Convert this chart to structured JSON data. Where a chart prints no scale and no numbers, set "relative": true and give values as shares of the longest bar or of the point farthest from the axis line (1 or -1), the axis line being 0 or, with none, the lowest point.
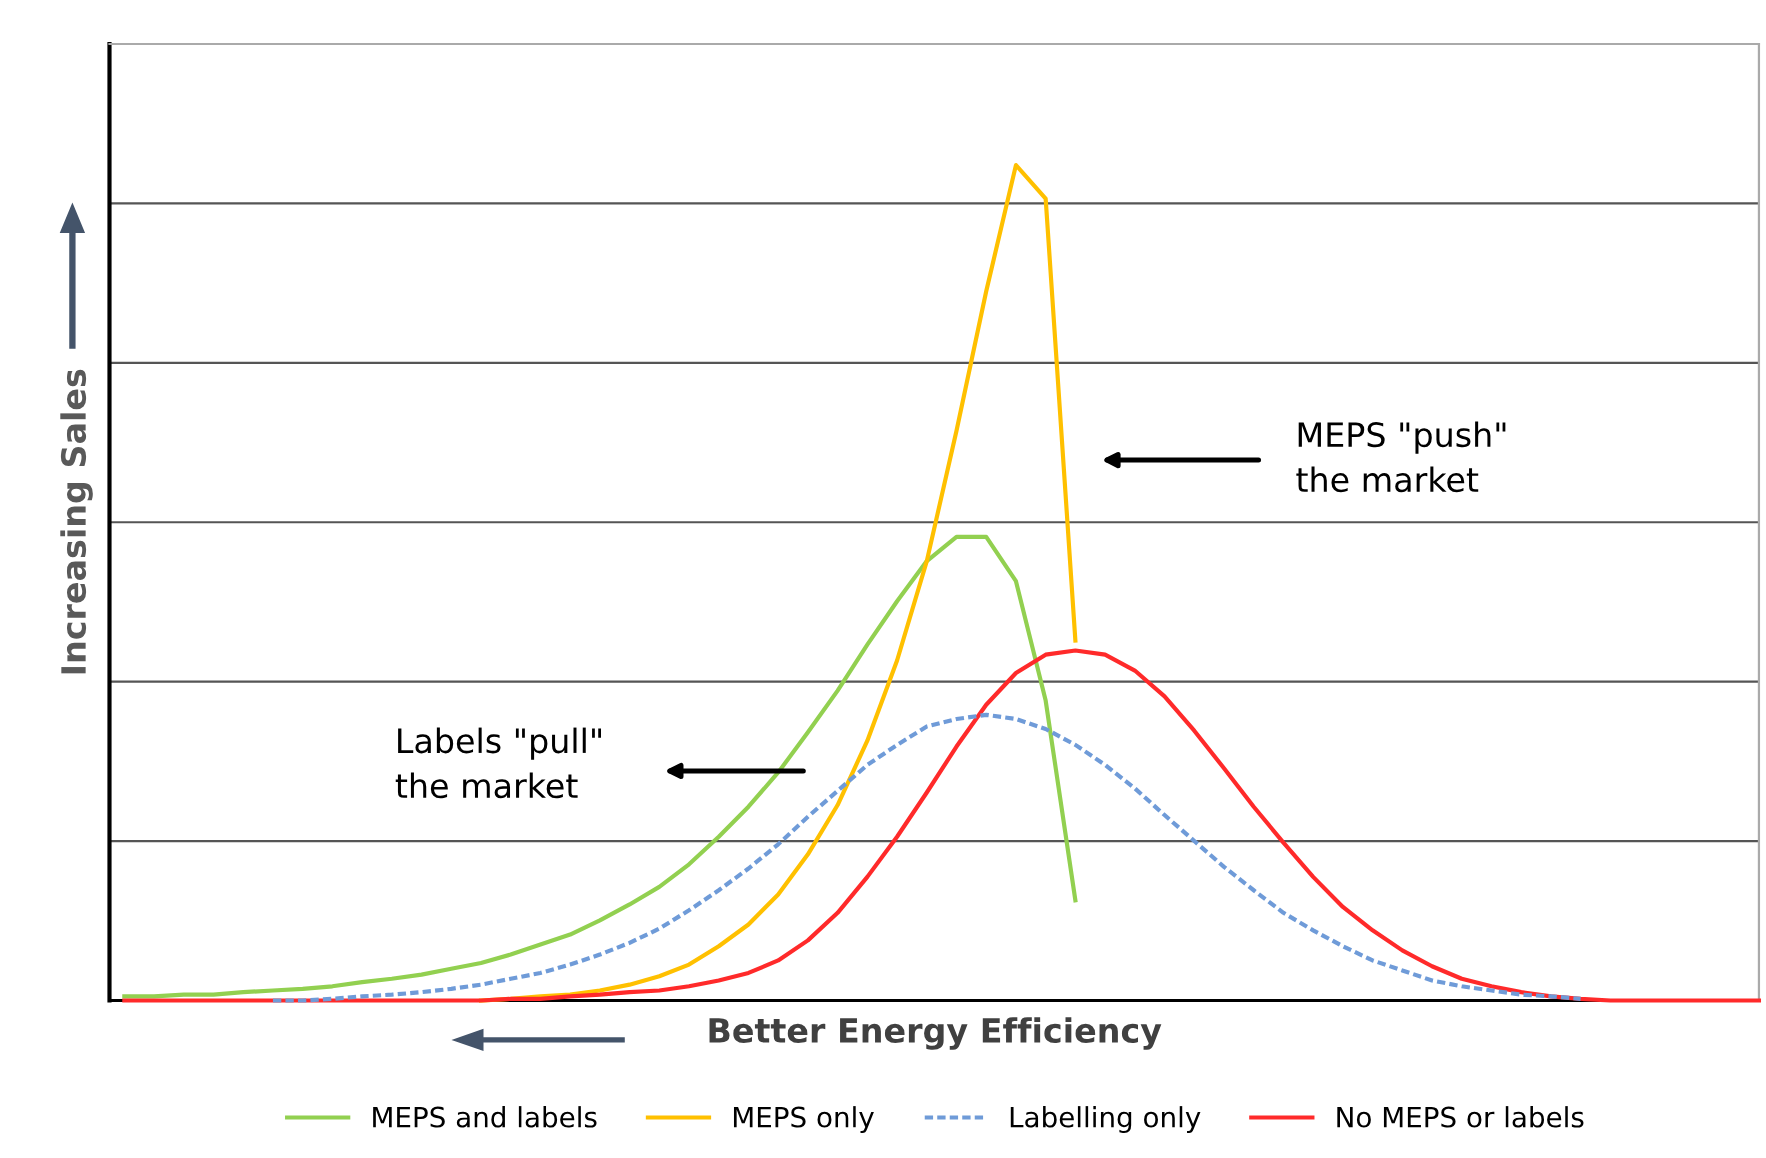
{
  "chart_data": {
    "type": "line",
    "relative": true,
    "xlabel": "Better Energy Efficiency",
    "ylabel": "Increasing Sales",
    "categories": [
      null,
      null,
      null,
      null,
      null,
      null,
      null,
      null,
      null,
      null,
      null,
      null,
      null,
      null,
      null,
      null,
      null,
      null,
      null,
      null,
      null,
      null,
      null,
      null,
      null,
      null,
      null,
      null,
      null,
      null,
      null,
      null,
      null,
      null,
      null,
      null,
      null,
      null,
      null,
      null,
      null,
      null,
      null,
      null,
      null,
      null,
      null,
      null,
      null,
      null,
      null,
      null,
      null,
      null,
      null,
      null
    ],
    "series": [
      {
        "name": "MEPS and labels",
        "color": "#92d050",
        "line_style": "solid",
        "values": [
          0.005,
          0.005,
          0.007,
          0.007,
          0.01,
          0.012,
          0.014,
          0.017,
          0.022,
          0.026,
          0.031,
          0.038,
          0.045,
          0.055,
          0.067,
          0.079,
          0.096,
          0.115,
          0.136,
          0.163,
          0.196,
          0.232,
          0.273,
          0.321,
          0.371,
          0.426,
          0.478,
          0.526,
          0.555,
          0.555,
          0.502,
          0.359,
          0.12,
          null,
          null,
          null,
          null,
          null,
          null,
          null,
          null,
          null,
          null,
          null,
          null,
          null,
          null,
          null,
          null,
          null,
          null,
          null,
          null,
          null,
          null,
          null
        ]
      },
      {
        "name": "MEPS only",
        "color": "#ffc000",
        "line_style": "solid",
        "values": [
          null,
          null,
          null,
          null,
          null,
          null,
          null,
          null,
          null,
          null,
          null,
          null,
          0,
          0.002,
          0.005,
          0.007,
          0.012,
          0.019,
          0.029,
          0.043,
          0.065,
          0.091,
          0.127,
          0.175,
          0.234,
          0.311,
          0.407,
          0.526,
          0.682,
          0.849,
          1.0,
          0.96,
          0.431,
          null,
          null,
          null,
          null,
          null,
          null,
          null,
          null,
          null,
          null,
          null,
          null,
          null,
          null,
          null,
          null,
          null,
          null,
          null,
          null,
          null,
          null,
          null
        ]
      },
      {
        "name": "Labelling only",
        "color": "#6f9bd8",
        "line_style": "dashed",
        "values": [
          null,
          null,
          null,
          null,
          null,
          0,
          0,
          0.002,
          0.005,
          0.007,
          0.01,
          0.014,
          0.019,
          0.026,
          0.033,
          0.043,
          0.055,
          0.069,
          0.086,
          0.108,
          0.132,
          0.158,
          0.187,
          0.22,
          0.251,
          0.282,
          0.306,
          0.328,
          0.337,
          0.342,
          0.337,
          0.325,
          0.306,
          0.282,
          0.254,
          0.222,
          0.191,
          0.16,
          0.132,
          0.105,
          0.084,
          0.065,
          0.048,
          0.036,
          0.024,
          0.017,
          0.012,
          0.007,
          0.005,
          0.002,
          null,
          null,
          null,
          null,
          null,
          null
        ]
      },
      {
        "name": "No MEPS or labels",
        "color": "#ff2a2a",
        "line_style": "solid",
        "values": [
          0,
          0,
          0,
          0,
          0,
          0,
          0,
          0,
          0,
          0,
          0,
          0,
          0,
          0.002,
          0.002,
          0.005,
          0.007,
          0.01,
          0.012,
          0.017,
          0.024,
          0.033,
          0.048,
          0.072,
          0.105,
          0.148,
          0.196,
          0.249,
          0.304,
          0.354,
          0.392,
          0.414,
          0.419,
          0.414,
          0.395,
          0.364,
          0.323,
          0.278,
          0.232,
          0.189,
          0.148,
          0.112,
          0.084,
          0.06,
          0.041,
          0.026,
          0.017,
          0.01,
          0.005,
          0.002,
          0,
          0,
          0,
          0,
          0,
          0
        ]
      }
    ],
    "annotations": [
      "MEPS \"push\"\nthe market",
      "Labels \"pull\"\nthe market"
    ],
    "legend": "bottom",
    "marker": "none"
  }
}
